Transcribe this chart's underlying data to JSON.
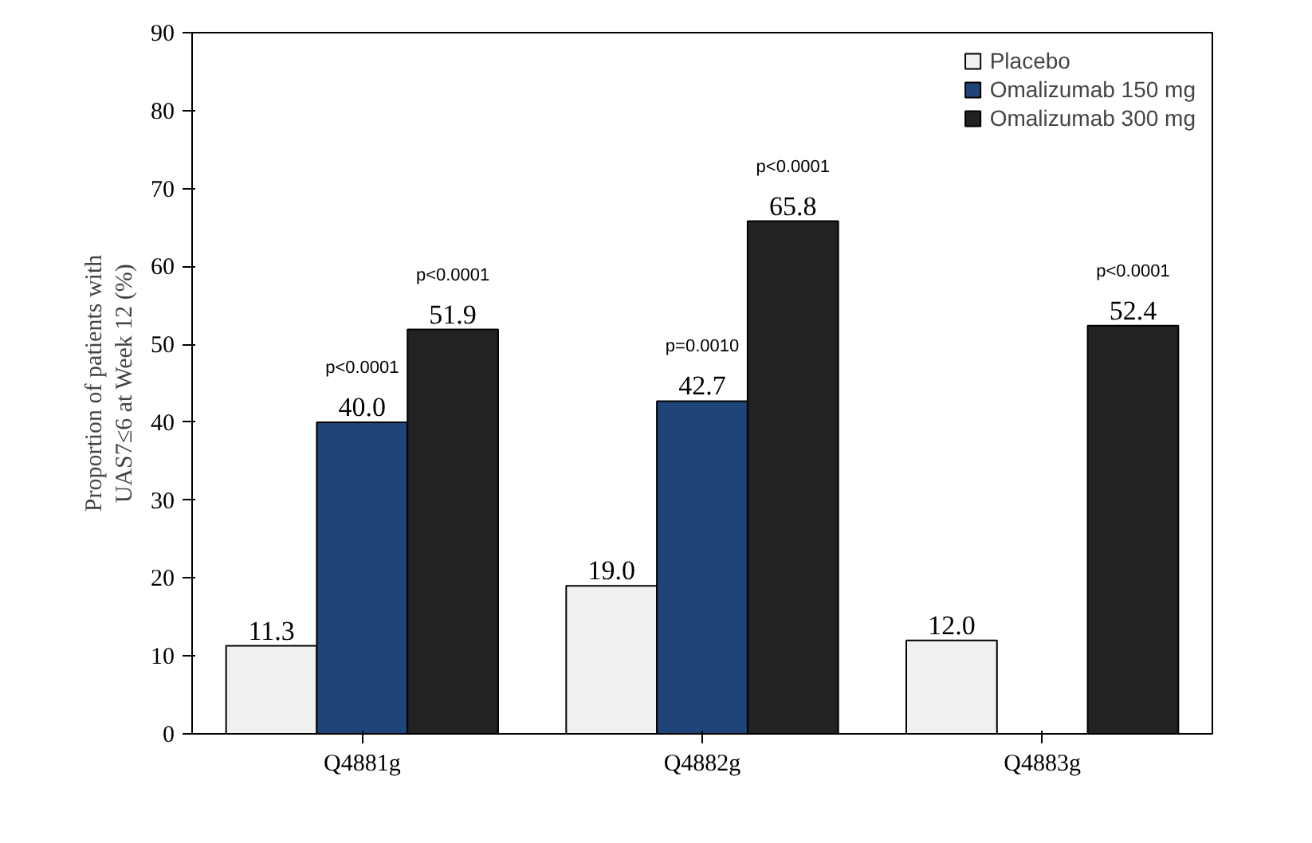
{
  "chart_data": {
    "type": "bar",
    "ylabel": "Proportion of patients with\nUAS7≤6 at Week 12 (%)",
    "categories": [
      "Q4881g",
      "Q4882g",
      "Q4883g"
    ],
    "series": [
      {
        "name": "Placebo",
        "color": "#f0f0f0",
        "values": [
          11.3,
          19.0,
          12.0
        ],
        "value_labels": [
          "11.3",
          "19.0",
          "12.0"
        ]
      },
      {
        "name": "Omalizumab 150 mg",
        "color": "#1f4478",
        "values": [
          40.0,
          42.7,
          null
        ],
        "value_labels": [
          "40.0",
          "42.7",
          null
        ]
      },
      {
        "name": "Omalizumab 300 mg",
        "color": "#222222",
        "values": [
          51.9,
          65.8,
          52.4
        ],
        "value_labels": [
          "51.9",
          "65.8",
          "52.4"
        ]
      }
    ],
    "annotations": [
      "p<0.0001",
      "p<0.0001",
      "p=0.0010",
      "p<0.0001",
      "p<0.0001"
    ],
    "ylim": [
      0,
      90
    ],
    "yticks": [
      0,
      10,
      20,
      30,
      40,
      50,
      60,
      70,
      80,
      90
    ],
    "grid": false,
    "legend": "top right"
  }
}
